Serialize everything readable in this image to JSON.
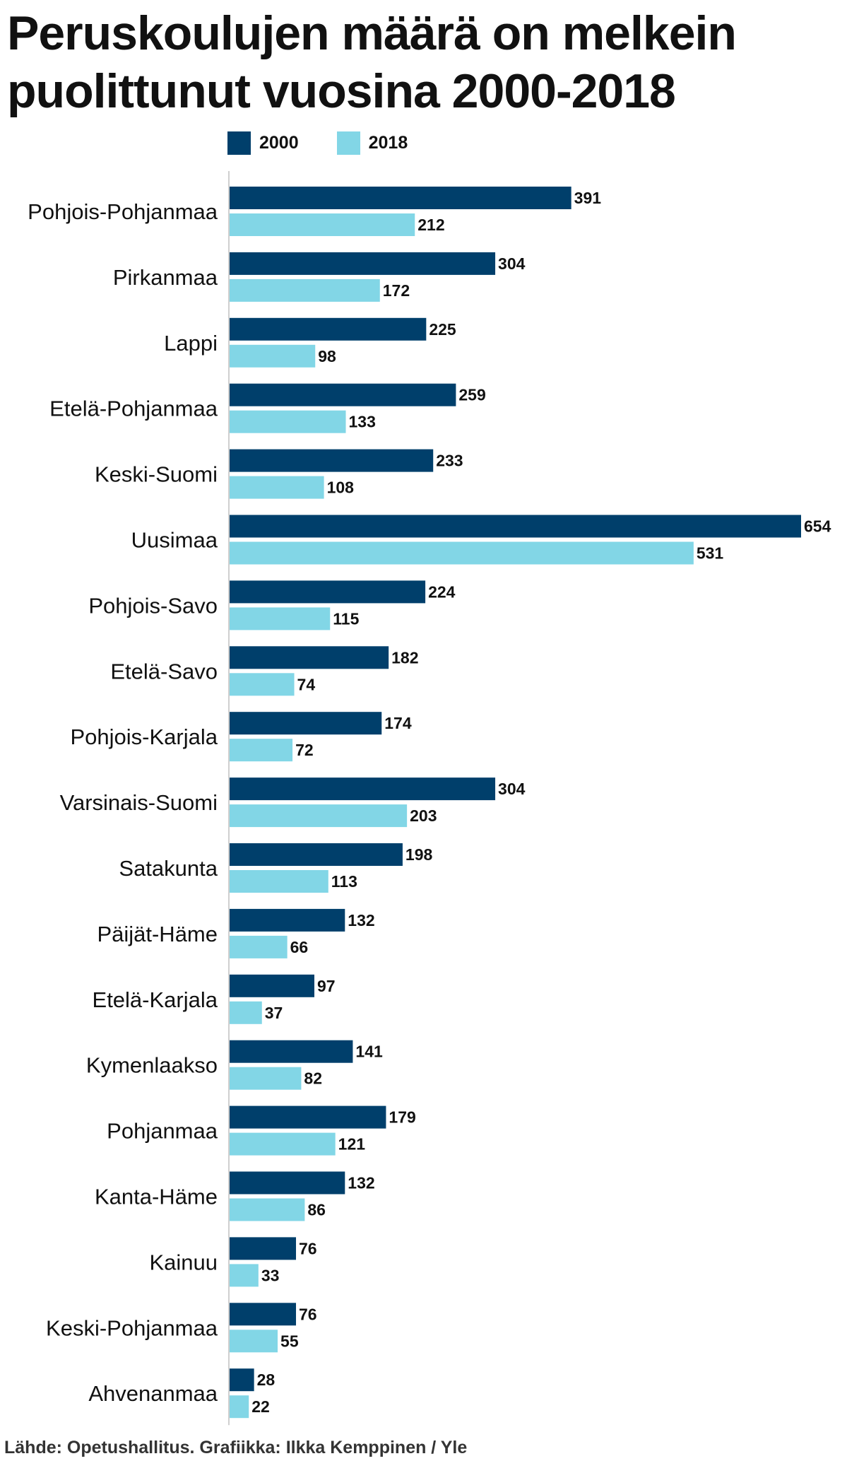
{
  "chart_data": {
    "type": "bar",
    "orientation": "horizontal",
    "title": "Peruskoulujen määrä on melkein puolittunut vuosina 2000-2018",
    "source": "Lähde: Opetushallitus. Grafiikka: Ilkka Kemppinen / Yle",
    "legend_placement": "top",
    "grid": false,
    "xlim": [
      0,
      654
    ],
    "categories": [
      "Pohjois-Pohjanmaa",
      "Pirkanmaa",
      "Lappi",
      "Etelä-Pohjanmaa",
      "Keski-Suomi",
      "Uusimaa",
      "Pohjois-Savo",
      "Etelä-Savo",
      "Pohjois-Karjala",
      "Varsinais-Suomi",
      "Satakunta",
      "Päijät-Häme",
      "Etelä-Karjala",
      "Kymenlaakso",
      "Pohjanmaa",
      "Kanta-Häme",
      "Kainuu",
      "Keski-Pohjanmaa",
      "Ahvenanmaa"
    ],
    "series": [
      {
        "name": "2000",
        "color": "#003f6b",
        "values": [
          391,
          304,
          225,
          259,
          233,
          654,
          224,
          182,
          174,
          304,
          198,
          132,
          97,
          141,
          179,
          132,
          76,
          76,
          28
        ]
      },
      {
        "name": "2018",
        "color": "#82d6e6",
        "values": [
          212,
          172,
          98,
          133,
          108,
          531,
          115,
          74,
          72,
          203,
          113,
          66,
          37,
          82,
          121,
          86,
          33,
          55,
          22
        ]
      }
    ]
  }
}
